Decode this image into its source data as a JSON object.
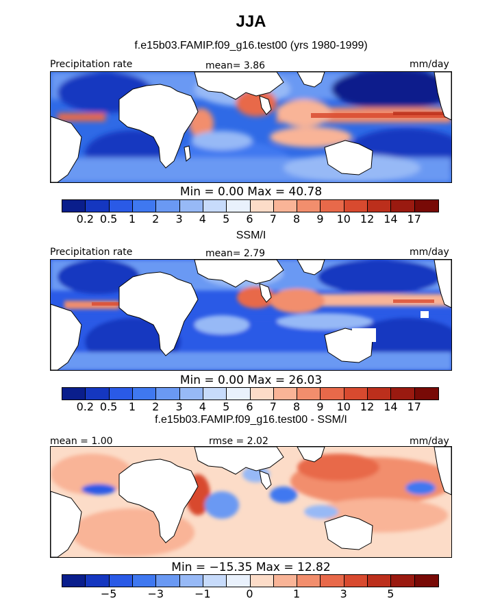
{
  "header": {
    "title": "JJA",
    "subtitle": "f.e15b03.FAMIP.f09_g16.test00 (yrs 1980-1999)"
  },
  "panels": [
    {
      "name": "model",
      "label_left": "Precipitation rate",
      "stat_text": "mean=   3.86",
      "units": "mm/day",
      "minmax": "Min =    0.00  Max =   40.78",
      "colorbar_ticks": [
        "0.2",
        "0.5",
        "1",
        "2",
        "3",
        "4",
        "5",
        "6",
        "7",
        "8",
        "9",
        "10",
        "12",
        "14",
        "17"
      ],
      "caption": "SSM/I"
    },
    {
      "name": "obs",
      "label_left": "Precipitation rate",
      "stat_text": "mean=   2.79",
      "units": "mm/day",
      "minmax": "Min =    0.00  Max =   26.03",
      "colorbar_ticks": [
        "0.2",
        "0.5",
        "1",
        "2",
        "3",
        "4",
        "5",
        "6",
        "7",
        "8",
        "9",
        "10",
        "12",
        "14",
        "17"
      ],
      "caption": "f.e15b03.FAMIP.f09_g16.test00 - SSM/I"
    },
    {
      "name": "diff",
      "label_left": "mean =    1.00",
      "stat_text": "rmse =    2.02",
      "units": "mm/day",
      "minmax": "Min = −15.35  Max =   12.82",
      "colorbar_ticks": [
        "−5",
        "−3",
        "−1",
        "0",
        "1",
        "3",
        "5"
      ]
    }
  ],
  "colors": {
    "levels": [
      "#0a1e8c",
      "#1537c0",
      "#2a5ae6",
      "#3f78f0",
      "#6a99f3",
      "#97b9f6",
      "#c7dbfb",
      "#e9f1fc",
      "#fcdcc8",
      "#f9b497",
      "#f28e6d",
      "#e8694a",
      "#d84a2f",
      "#bc2f1c",
      "#9a1a10",
      "#780a06"
    ],
    "land_outline": "#000000"
  },
  "map_fields": {
    "model": {
      "base": "#2f6ae6",
      "features": [
        {
          "kind": "itcz_band",
          "color": "#f28e6d"
        },
        {
          "kind": "itcz_core",
          "color": "#d84a2f"
        },
        {
          "kind": "indian_monsoon",
          "color": "#e8694a"
        },
        {
          "kind": "subtropical_dry",
          "color": "#0a1e8c"
        },
        {
          "kind": "shoulder",
          "color": "#97b9f6"
        }
      ]
    },
    "obs": {
      "base": "#2f6ae6",
      "features": [
        {
          "kind": "itcz_band",
          "color": "#f28e6d"
        },
        {
          "kind": "itcz_core",
          "color": "#d84a2f"
        },
        {
          "kind": "indian_monsoon",
          "color": "#e8694a"
        },
        {
          "kind": "subtropical_dry",
          "color": "#1537c0"
        },
        {
          "kind": "shoulder",
          "color": "#97b9f6"
        }
      ]
    },
    "diff": {
      "base": "#fcdcc8",
      "features": [
        {
          "kind": "pos_ocean",
          "color": "#f9b497"
        },
        {
          "kind": "pos_strong",
          "color": "#e8694a"
        },
        {
          "kind": "neg_patch",
          "color": "#2a5ae6"
        },
        {
          "kind": "neg_weak",
          "color": "#97b9f6"
        }
      ]
    }
  }
}
